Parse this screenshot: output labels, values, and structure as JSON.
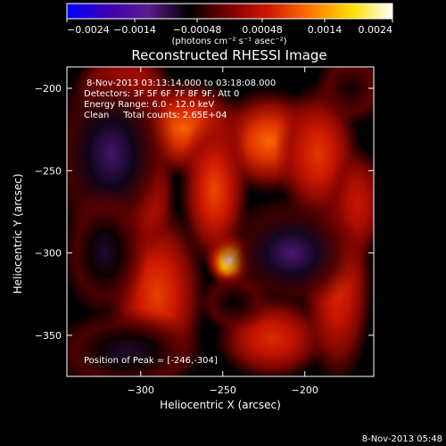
{
  "chart_data": {
    "type": "heatmap",
    "title": "Reconstructed RHESSI Image",
    "xlabel": "Heliocentric X (arcsec)",
    "ylabel": "Heliocentric Y (arcsec)",
    "xlim": [
      -345,
      -158
    ],
    "ylim": [
      -375,
      -187
    ],
    "x_ticks": [
      -300,
      -250,
      -200
    ],
    "y_ticks": [
      -200,
      -250,
      -300,
      -350
    ],
    "x_tick_labels": [
      "−300",
      "−250",
      "−200"
    ],
    "y_tick_labels": [
      "−200",
      "−250",
      "−300",
      "−350"
    ],
    "colorbar": {
      "min": -0.0024,
      "max": 0.0024,
      "ticks": [
        -0.0024,
        -0.0014,
        -0.00048,
        0.00048,
        0.0014,
        0.0024
      ],
      "tick_labels": [
        "−0.0024",
        "−0.0014",
        "−0.00048",
        "0.00048",
        "0.0014",
        "0.0024"
      ],
      "unit_label": "(photons cm⁻² s⁻¹ asec⁻²)",
      "colormap": [
        "#0000ff",
        "#3c00b4",
        "#5a1a8c",
        "#000000",
        "#800000",
        "#d21a00",
        "#ff7800",
        "#ffe000",
        "#ffffff"
      ]
    },
    "peak": {
      "x": -246,
      "y": -304,
      "value": 0.0024
    },
    "sources": [
      {
        "kind": "peak",
        "x": -246,
        "y": -304,
        "sx": 7,
        "sy": 8,
        "amp": 0.0024
      },
      {
        "kind": "positive",
        "x": -222,
        "y": -232,
        "sx": 16,
        "sy": 15,
        "amp": 0.0011
      },
      {
        "kind": "positive",
        "x": -274,
        "y": -224,
        "sx": 18,
        "sy": 14,
        "amp": 0.00105
      },
      {
        "kind": "positive",
        "x": -255,
        "y": -262,
        "sx": 10,
        "sy": 22,
        "amp": 0.0009
      },
      {
        "kind": "positive",
        "x": -192,
        "y": -240,
        "sx": 12,
        "sy": 20,
        "amp": 0.0008
      },
      {
        "kind": "positive",
        "x": -290,
        "y": -325,
        "sx": 14,
        "sy": 26,
        "amp": 0.00085
      },
      {
        "kind": "positive",
        "x": -296,
        "y": -265,
        "sx": 8,
        "sy": 16,
        "amp": 0.0006
      },
      {
        "kind": "positive",
        "x": -220,
        "y": -352,
        "sx": 16,
        "sy": 12,
        "amp": 0.0007
      },
      {
        "kind": "positive",
        "x": -180,
        "y": -320,
        "sx": 10,
        "sy": 28,
        "amp": 0.0007
      },
      {
        "kind": "positive",
        "x": -168,
        "y": -270,
        "sx": 8,
        "sy": 16,
        "amp": 0.0005
      },
      {
        "kind": "positive",
        "x": -310,
        "y": -200,
        "sx": 14,
        "sy": 12,
        "amp": 0.0005
      },
      {
        "kind": "negative",
        "x": -318,
        "y": -240,
        "sx": 18,
        "sy": 26,
        "amp": -0.00105
      },
      {
        "kind": "negative",
        "x": -322,
        "y": -300,
        "sx": 12,
        "sy": 18,
        "amp": -0.0008
      },
      {
        "kind": "negative",
        "x": -208,
        "y": -300,
        "sx": 20,
        "sy": 16,
        "amp": -0.0011
      },
      {
        "kind": "negative",
        "x": -308,
        "y": -360,
        "sx": 22,
        "sy": 12,
        "amp": -0.0008
      },
      {
        "kind": "negative",
        "x": -243,
        "y": -330,
        "sx": 10,
        "sy": 8,
        "amp": -0.0006
      },
      {
        "kind": "negative",
        "x": -172,
        "y": -200,
        "sx": 10,
        "sy": 10,
        "amp": -0.0005
      }
    ],
    "annotations": [
      "8-Nov-2013 03:13:14.000 to 03:18:08.000",
      "Detectors: 3F 5F 6F 7F 8F 9F, Att 0",
      "Energy Range: 6.0 - 12.0 keV",
      "Clean     Total counts: 2.65E+04",
      "Position of Peak = [-246,-304]"
    ]
  },
  "footer_timestamp": "8-Nov-2013 05:48"
}
